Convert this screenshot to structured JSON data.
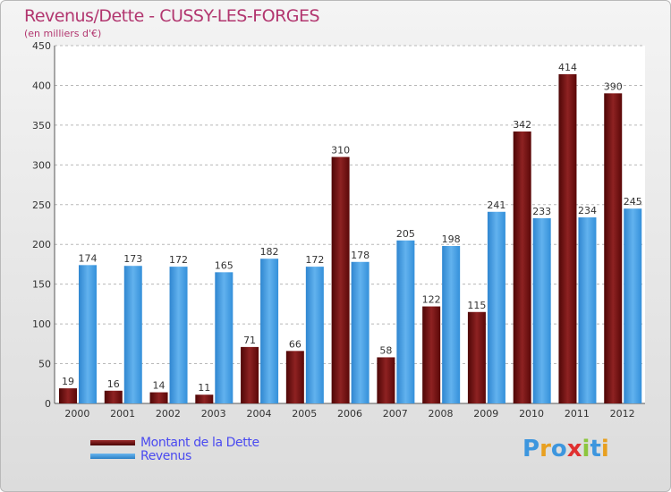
{
  "header": {
    "title": "Revenus/Dette - CUSSY-LES-FORGES",
    "subtitle": "(en milliers d'€)"
  },
  "colors": {
    "dette": "#6b0b0b",
    "revenus": "#3d96de",
    "grid": "#b8b8b8",
    "axis_text": "#333333",
    "title": "#b2366f",
    "legend_text": "#4a4af0"
  },
  "chart_data": {
    "type": "bar",
    "title": "Revenus/Dette - CUSSY-LES-FORGES",
    "subtitle": "(en milliers d'€)",
    "categories": [
      "2000",
      "2001",
      "2002",
      "2003",
      "2004",
      "2005",
      "2006",
      "2007",
      "2008",
      "2009",
      "2010",
      "2011",
      "2012"
    ],
    "series": [
      {
        "name": "Montant de la Dette",
        "values": [
          19,
          16,
          14,
          11,
          71,
          66,
          310,
          58,
          122,
          115,
          342,
          414,
          390
        ]
      },
      {
        "name": "Revenus",
        "values": [
          174,
          173,
          172,
          165,
          182,
          172,
          178,
          205,
          198,
          241,
          233,
          234,
          245
        ]
      }
    ],
    "ylim": [
      0,
      450
    ],
    "yticks": [
      0,
      50,
      100,
      150,
      200,
      250,
      300,
      350,
      400,
      450
    ],
    "grid": true,
    "legend_position": "bottom-left"
  },
  "legend": {
    "items": [
      {
        "label": "Montant de la Dette",
        "color": "#6b0b0b"
      },
      {
        "label": "Revenus",
        "color": "#3d96de"
      }
    ]
  },
  "brand": {
    "letters": [
      {
        "ch": "P",
        "color": "#3d96de"
      },
      {
        "ch": "r",
        "color": "#e8a020"
      },
      {
        "ch": "o",
        "color": "#3d96de"
      },
      {
        "ch": "x",
        "color": "#e03030"
      },
      {
        "ch": "i",
        "color": "#8cc63e"
      },
      {
        "ch": "t",
        "color": "#3d96de"
      },
      {
        "ch": "i",
        "color": "#e8a020"
      }
    ]
  }
}
